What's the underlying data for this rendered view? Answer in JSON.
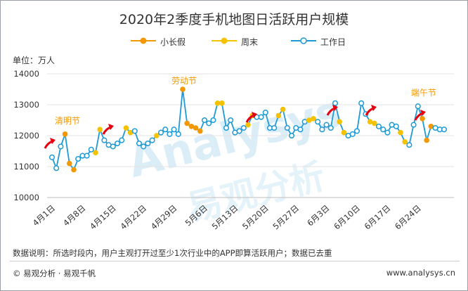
{
  "chart_data": {
    "type": "line",
    "title": "2020年2季度手机地图日活跃用户规模",
    "unit_label": "单位：万人",
    "ylim": [
      10000,
      14000
    ],
    "y_ticks": [
      10000,
      11000,
      12000,
      13000,
      14000
    ],
    "grid": true,
    "x_tick_labels": [
      "4月1日",
      "4月8日",
      "4月15日",
      "4月22日",
      "4月29日",
      "5月6日",
      "5月13日",
      "5月20日",
      "5月27日",
      "6月3日",
      "6月10日",
      "6月17日",
      "6月24日"
    ],
    "x": [
      "4月1日",
      "4月2日",
      "4月3日",
      "4月4日",
      "4月5日",
      "4月6日",
      "4月7日",
      "4月8日",
      "4月9日",
      "4月10日",
      "4月11日",
      "4月12日",
      "4月13日",
      "4月14日",
      "4月15日",
      "4月16日",
      "4月17日",
      "4月18日",
      "4月19日",
      "4月20日",
      "4月21日",
      "4月22日",
      "4月23日",
      "4月24日",
      "4月25日",
      "4月26日",
      "4月27日",
      "4月28日",
      "4月29日",
      "4月30日",
      "5月1日",
      "5月2日",
      "5月3日",
      "5月4日",
      "5月5日",
      "5月6日",
      "5月7日",
      "5月8日",
      "5月9日",
      "5月10日",
      "5月11日",
      "5月12日",
      "5月13日",
      "5月14日",
      "5月15日",
      "5月16日",
      "5月17日",
      "5月18日",
      "5月19日",
      "5月20日",
      "5月21日",
      "5月22日",
      "5月23日",
      "5月24日",
      "5月25日",
      "5月26日",
      "5月27日",
      "5月28日",
      "5月29日",
      "5月30日",
      "5月31日",
      "6月1日",
      "6月2日",
      "6月3日",
      "6月4日",
      "6月5日",
      "6月6日",
      "6月7日",
      "6月8日",
      "6月9日",
      "6月10日",
      "6月11日",
      "6月12日",
      "6月13日",
      "6月14日",
      "6月15日",
      "6月16日",
      "6月17日",
      "6月18日",
      "6月19日",
      "6月20日",
      "6月21日",
      "6月22日",
      "6月23日",
      "6月24日",
      "6月25日",
      "6月26日",
      "6月27日",
      "6月28日",
      "6月29日",
      "6月30日"
    ],
    "values": [
      11300,
      10950,
      11650,
      12050,
      11100,
      10900,
      11250,
      11350,
      11350,
      11550,
      11450,
      12200,
      11850,
      11700,
      11650,
      11750,
      11850,
      12250,
      12100,
      12150,
      11750,
      11650,
      11750,
      11850,
      12000,
      12100,
      12200,
      12050,
      12200,
      12050,
      13500,
      12400,
      12300,
      12250,
      12150,
      12500,
      12400,
      12500,
      13050,
      13050,
      12250,
      12500,
      12100,
      12150,
      12250,
      12350,
      12650,
      12600,
      12600,
      12750,
      12250,
      12250,
      12650,
      12850,
      12250,
      12000,
      12250,
      12200,
      12450,
      12500,
      12550,
      12450,
      12200,
      12350,
      12250,
      13050,
      12450,
      12100,
      12000,
      12050,
      12150,
      13050,
      12700,
      12450,
      12400,
      12300,
      12200,
      12100,
      12350,
      12300,
      12100,
      11800,
      11700,
      12350,
      12950,
      12550,
      11850,
      12300,
      12250,
      12200,
      12200
    ],
    "day_types": [
      "W",
      "W",
      "W",
      "H",
      "H",
      "H",
      "W",
      "W",
      "W",
      "W",
      "E",
      "E",
      "W",
      "W",
      "W",
      "W",
      "W",
      "E",
      "E",
      "W",
      "W",
      "W",
      "W",
      "W",
      "E",
      "W",
      "W",
      "W",
      "W",
      "W",
      "H",
      "H",
      "H",
      "H",
      "H",
      "W",
      "W",
      "W",
      "E",
      "E",
      "W",
      "W",
      "W",
      "W",
      "W",
      "E",
      "E",
      "W",
      "W",
      "W",
      "W",
      "W",
      "E",
      "E",
      "W",
      "W",
      "W",
      "W",
      "W",
      "E",
      "E",
      "W",
      "W",
      "W",
      "W",
      "W",
      "E",
      "E",
      "W",
      "W",
      "W",
      "W",
      "W",
      "E",
      "E",
      "W",
      "W",
      "W",
      "W",
      "W",
      "E",
      "E",
      "W",
      "W",
      "W",
      "H",
      "H",
      "H",
      "W",
      "W",
      "W"
    ],
    "series": [
      {
        "name": "小长假",
        "code": "H",
        "color": "#f39800"
      },
      {
        "name": "周末",
        "code": "E",
        "color": "#f5c200"
      },
      {
        "name": "工作日",
        "code": "W",
        "color": "#1e9ad6"
      }
    ],
    "line_color": "#1e9ad6",
    "annotations": [
      {
        "text": "清明节",
        "color": "#f39800"
      },
      {
        "text": "劳动节",
        "color": "#f39800"
      },
      {
        "text": "端午节",
        "color": "#f39800"
      }
    ],
    "trend_arrow_color": "#e60012"
  },
  "footnote": "数据说明：所选时段内，用户主观打开过至少1次行业中的APP即算活跃用户；数据已去重",
  "brand": "© 易观分析 · 易观千帆",
  "website": "www.analysys.cn",
  "watermark": {
    "text": "Analysys",
    "subtext": "易观分析"
  }
}
